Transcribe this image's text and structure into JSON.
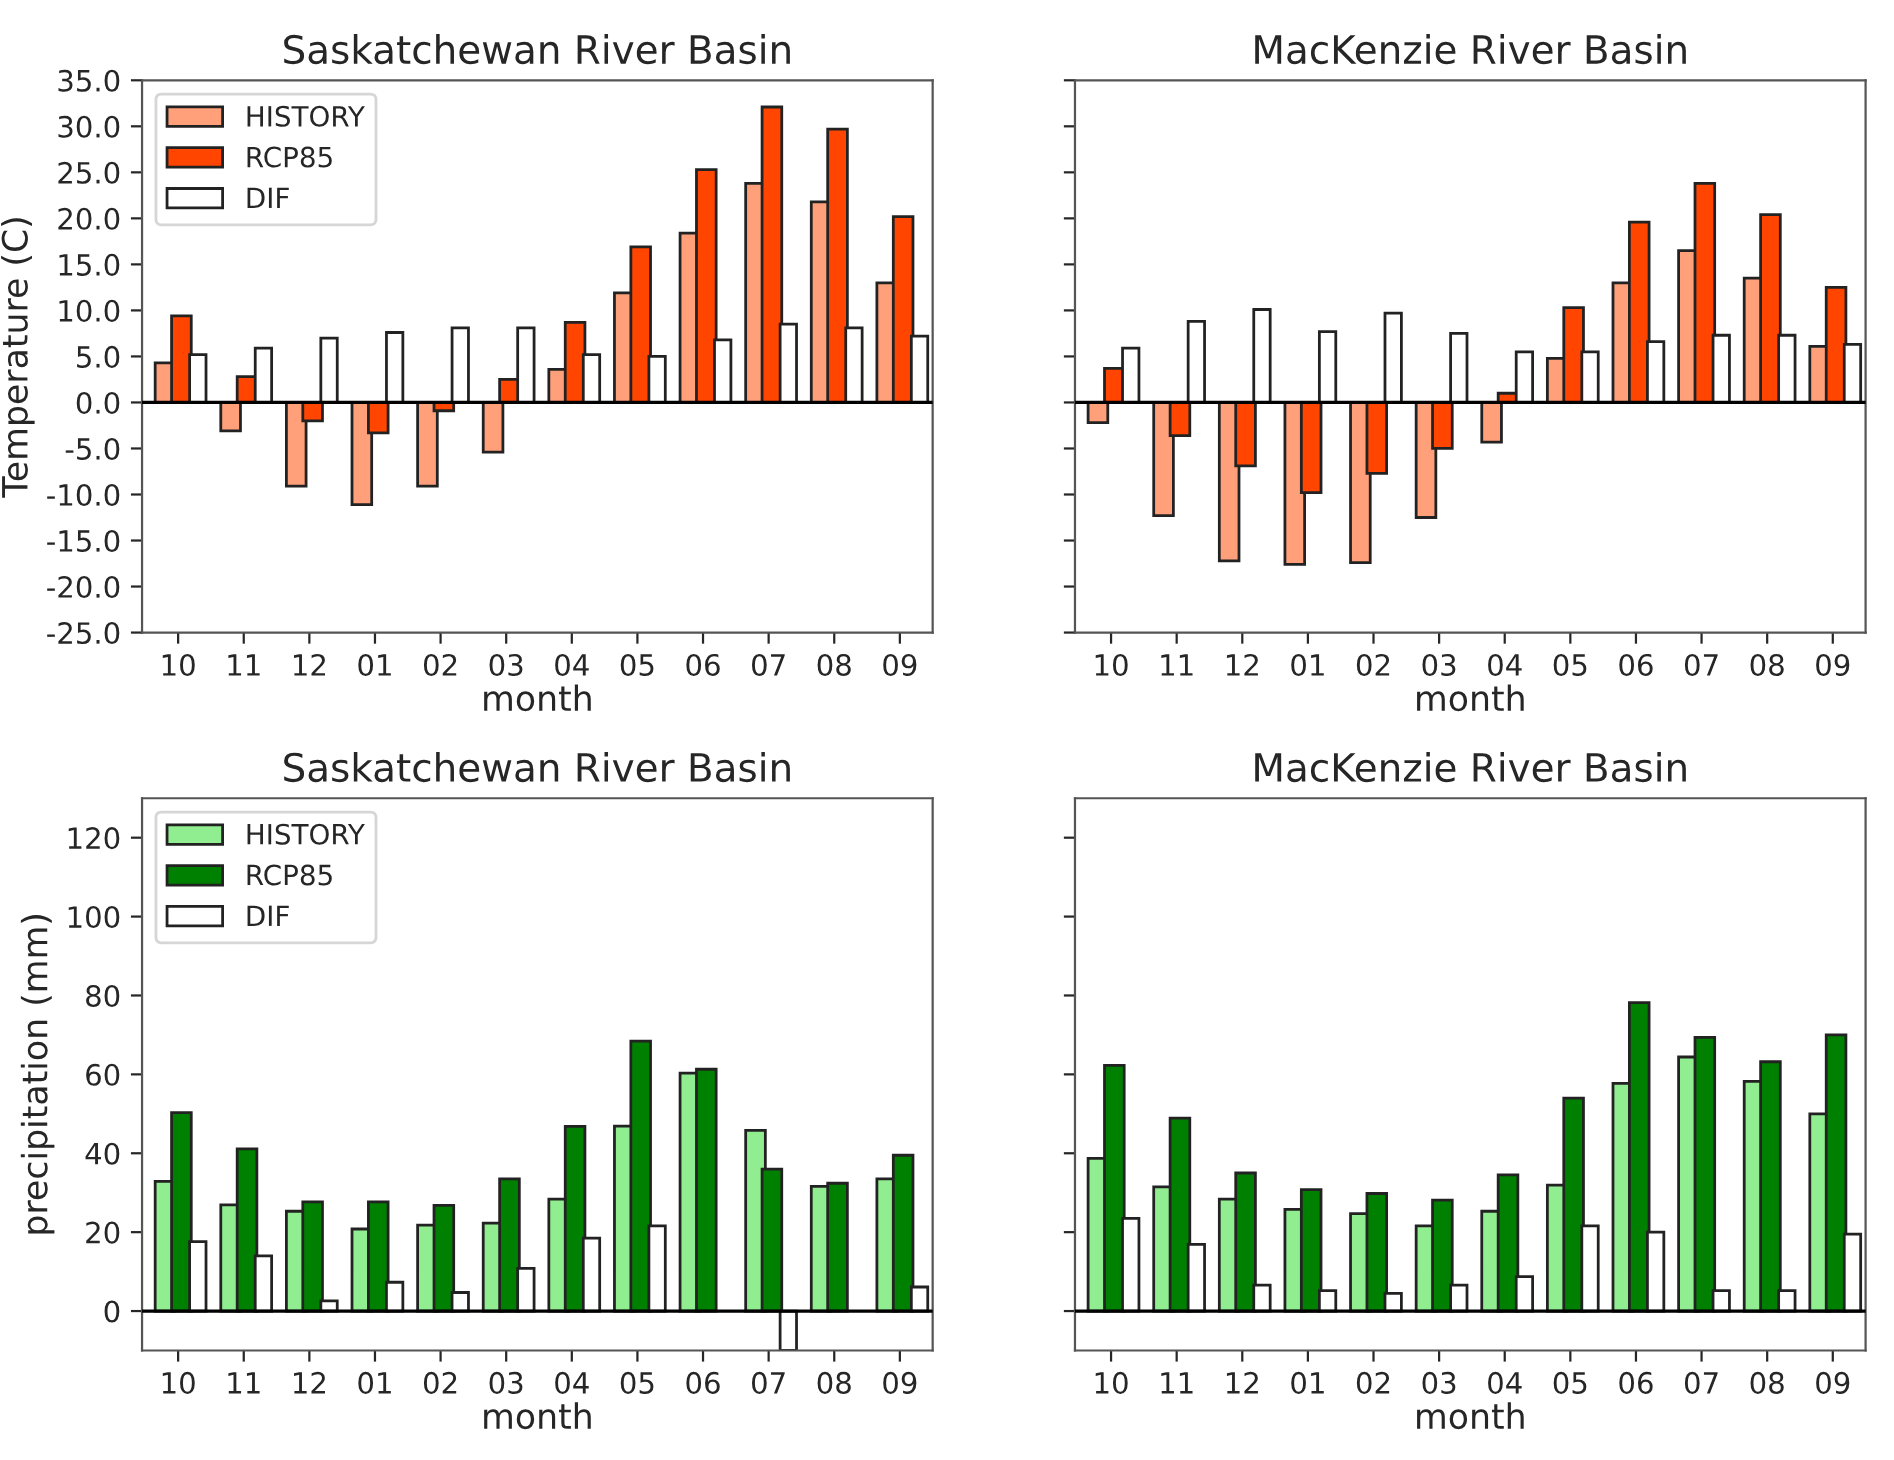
{
  "chart_data": [
    {
      "type": "bar",
      "title": "Saskatchewan River Basin",
      "xlabel": "month",
      "ylabel": "Temperature (C)",
      "categories": [
        "10",
        "11",
        "12",
        "01",
        "02",
        "03",
        "04",
        "05",
        "06",
        "07",
        "08",
        "09"
      ],
      "series": [
        {
          "name": "HISTORY",
          "color": "#ffa07a",
          "values": [
            4.3,
            -3.1,
            -9.1,
            -11.1,
            -9.1,
            -5.4,
            3.6,
            11.9,
            18.4,
            23.8,
            21.8,
            13.0
          ]
        },
        {
          "name": "RCP85",
          "color": "#ff4500",
          "values": [
            9.4,
            2.8,
            -2.0,
            -3.3,
            -0.9,
            2.5,
            8.7,
            16.9,
            25.3,
            32.1,
            29.7,
            20.2
          ]
        },
        {
          "name": "DIF",
          "color": "#ffffff",
          "values": [
            5.2,
            5.9,
            7.0,
            7.6,
            8.1,
            8.1,
            5.2,
            5.0,
            6.8,
            8.5,
            8.1,
            7.2
          ]
        }
      ],
      "ylim": [
        -25,
        35
      ],
      "yticks": [
        {
          "value": -25,
          "label": "-25.0"
        },
        {
          "value": -20,
          "label": "-20.0"
        },
        {
          "value": -15,
          "label": "-15.0"
        },
        {
          "value": -10,
          "label": "-10.0"
        },
        {
          "value": -5,
          "label": "-5.0"
        },
        {
          "value": 0,
          "label": "0.0"
        },
        {
          "value": 5,
          "label": "5.0"
        },
        {
          "value": 10,
          "label": "10.0"
        },
        {
          "value": 15,
          "label": "15.0"
        },
        {
          "value": 20,
          "label": "20.0"
        },
        {
          "value": 25,
          "label": "25.0"
        },
        {
          "value": 30,
          "label": "30.0"
        },
        {
          "value": 35,
          "label": "35.0"
        }
      ],
      "ref_lines": [
        {
          "axis": "y",
          "value": 0,
          "color": "#000000"
        }
      ],
      "legend": "top left"
    },
    {
      "type": "bar",
      "title": "MacKenzie River Basin",
      "xlabel": "month",
      "categories": [
        "10",
        "11",
        "12",
        "01",
        "02",
        "03",
        "04",
        "05",
        "06",
        "07",
        "08",
        "09"
      ],
      "series": [
        {
          "color": "#ffa07a",
          "values": [
            -2.2,
            -12.3,
            -17.2,
            -17.6,
            -17.4,
            -12.5,
            -4.3,
            4.8,
            13.0,
            16.5,
            13.5,
            6.1
          ]
        },
        {
          "color": "#ff4500",
          "values": [
            3.7,
            -3.6,
            -6.9,
            -9.8,
            -7.7,
            -5.0,
            1.0,
            10.3,
            19.6,
            23.8,
            20.4,
            12.5
          ]
        },
        {
          "color": "#ffffff",
          "values": [
            5.9,
            8.8,
            10.1,
            7.7,
            9.7,
            7.5,
            5.5,
            5.5,
            6.6,
            7.3,
            7.3,
            6.3
          ]
        }
      ],
      "ylim": [
        -25,
        35
      ],
      "yticks": [
        -25,
        -20,
        -15,
        -10,
        -5,
        0,
        5,
        10,
        15,
        20,
        25,
        30,
        35
      ],
      "ref_lines": [
        {
          "axis": "y",
          "value": 0,
          "color": "#000000"
        }
      ],
      "tick_labels": "x"
    },
    {
      "type": "bar",
      "title": "Saskatchewan River Basin",
      "xlabel": "month",
      "ylabel": "precipitation (mm)",
      "categories": [
        "10",
        "11",
        "12",
        "01",
        "02",
        "03",
        "04",
        "05",
        "06",
        "07",
        "08",
        "09"
      ],
      "series": [
        {
          "name": "HISTORY",
          "color": "#90ee90",
          "values": [
            32.9,
            26.9,
            25.3,
            20.8,
            21.8,
            22.3,
            28.4,
            46.9,
            60.3,
            45.8,
            31.6,
            33.5
          ]
        },
        {
          "name": "RCP85",
          "color": "#008000",
          "values": [
            50.3,
            41.1,
            27.7,
            27.7,
            26.8,
            33.5,
            46.8,
            68.4,
            61.3,
            36.0,
            32.4,
            39.5
          ]
        },
        {
          "name": "DIF",
          "color": "#ffffff",
          "values": [
            17.6,
            14.0,
            2.6,
            7.3,
            4.7,
            10.8,
            18.5,
            21.6,
            null,
            -10,
            null,
            6.1
          ]
        }
      ],
      "ylim": [
        -10,
        130
      ],
      "yticks": [
        0,
        20,
        40,
        60,
        80,
        100,
        120
      ],
      "ref_lines": [
        {
          "axis": "y",
          "value": 0,
          "color": "#000000"
        }
      ],
      "legend": "top left"
    },
    {
      "type": "bar",
      "title": "MacKenzie River Basin",
      "xlabel": "month",
      "categories": [
        "10",
        "11",
        "12",
        "01",
        "02",
        "03",
        "04",
        "05",
        "06",
        "07",
        "08",
        "09"
      ],
      "series": [
        {
          "color": "#90ee90",
          "values": [
            38.7,
            31.5,
            28.4,
            25.8,
            24.7,
            21.6,
            25.3,
            31.9,
            57.7,
            64.4,
            58.2,
            50.0
          ]
        },
        {
          "color": "#008000",
          "values": [
            62.3,
            48.9,
            35.0,
            30.8,
            29.8,
            28.1,
            34.5,
            54.0,
            78.2,
            69.4,
            63.2,
            70.0
          ]
        },
        {
          "color": "#ffffff",
          "values": [
            23.5,
            16.9,
            6.6,
            5.2,
            4.5,
            6.6,
            8.7,
            21.6,
            20.0,
            5.2,
            5.2,
            19.5
          ]
        }
      ],
      "ylim": [
        -10,
        130
      ],
      "yticks": [
        0,
        20,
        40,
        60,
        80,
        100,
        120
      ],
      "ref_lines": [
        {
          "axis": "y",
          "value": 0,
          "color": "#000000"
        }
      ],
      "tick_labels": "x"
    }
  ]
}
